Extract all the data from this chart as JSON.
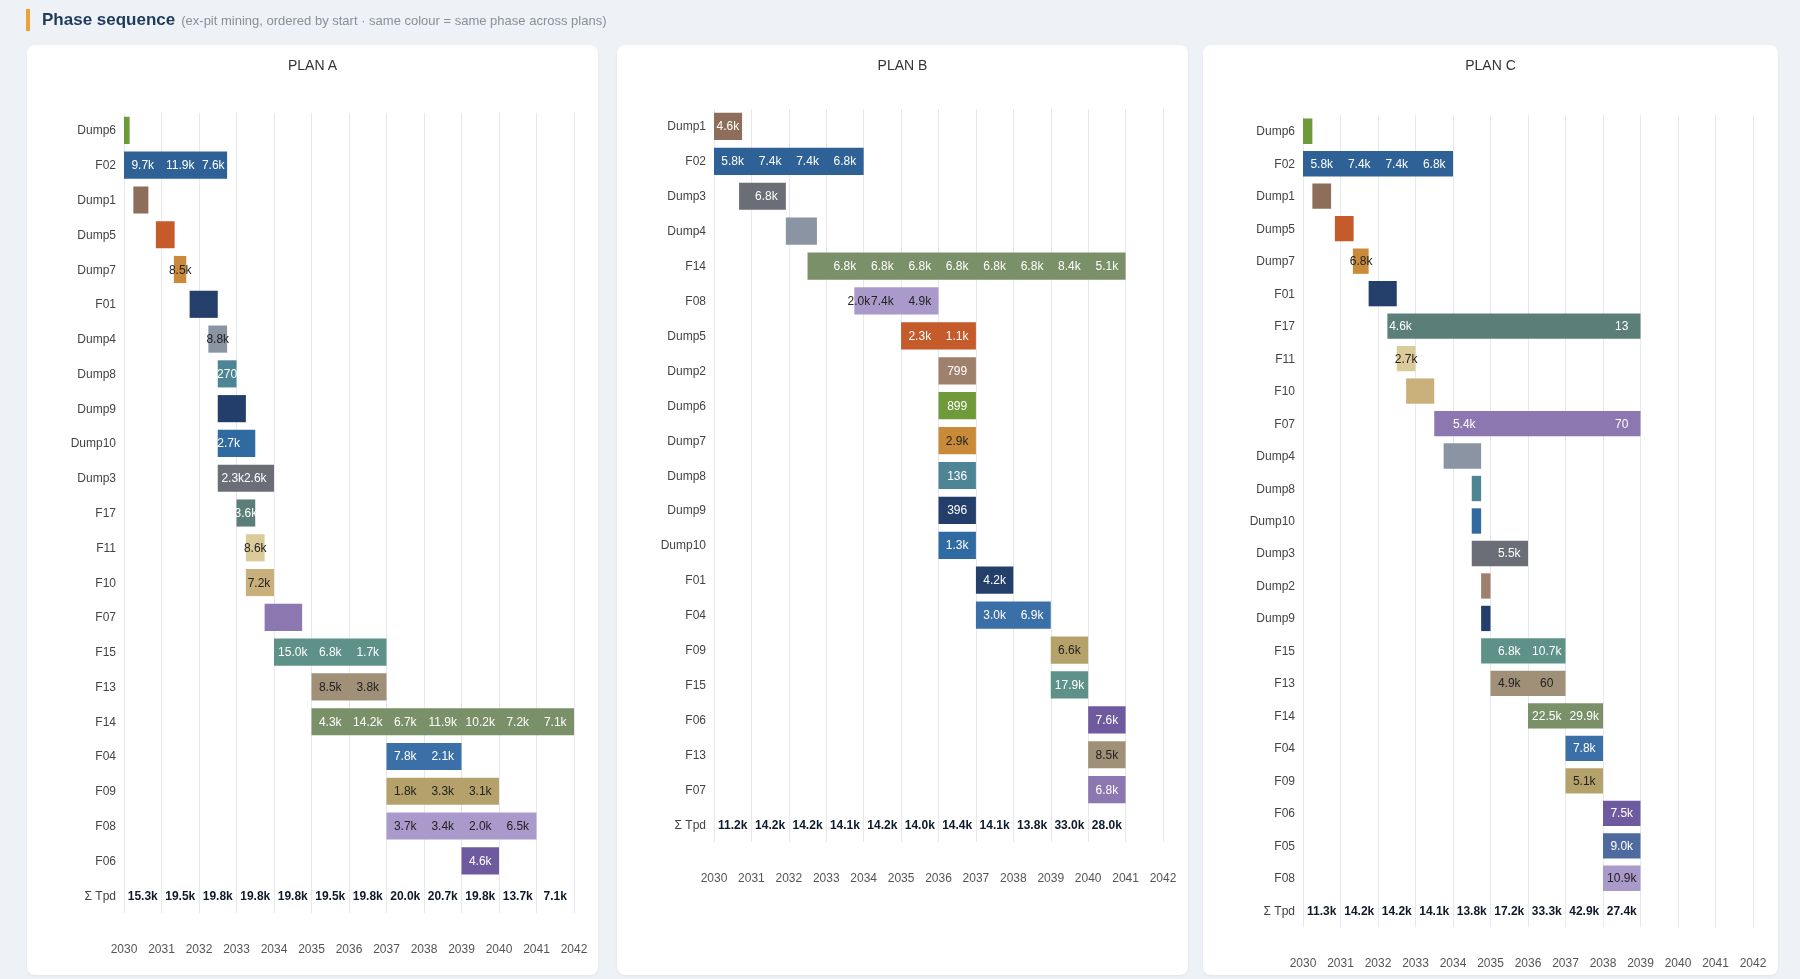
{
  "chart_data": [
    {
      "type": "bar",
      "orientation": "horizontal",
      "title": "PLAN A",
      "grid": "x",
      "xlim": [
        2030,
        2042
      ],
      "xticks": [
        2030,
        2031,
        2032,
        2033,
        2034,
        2035,
        2036,
        2037,
        2038,
        2039,
        2040,
        2041,
        2042
      ],
      "categories": [
        "Dump6",
        "F02",
        "Dump1",
        "Dump5",
        "Dump7",
        "F01",
        "Dump4",
        "Dump8",
        "Dump9",
        "Dump10",
        "Dump3",
        "F17",
        "F11",
        "F10",
        "F07",
        "F15",
        "F13",
        "F14",
        "F04",
        "F09",
        "F08",
        "F06",
        "Σ Tpd"
      ],
      "base": [
        2030,
        2030,
        2030.25,
        2030.85,
        2031.33,
        2031.75,
        2032.25,
        2032.5,
        2032.5,
        2032.5,
        2032.5,
        2033,
        2033.25,
        2033.25,
        2033.75,
        2034,
        2035,
        2035,
        2037,
        2037,
        2037,
        2039,
        null
      ],
      "values": [
        0.15,
        2.75,
        0.4,
        0.5,
        0.33,
        0.75,
        0.5,
        0.5,
        0.75,
        1,
        1.5,
        0.5,
        0.5,
        0.75,
        1,
        3,
        2,
        7,
        2,
        3,
        4,
        1,
        null
      ],
      "colors": [
        "#6f9a3a",
        "#2e6195",
        "#8c6e5a",
        "#c55a2a",
        "#c98a3a",
        "#253f6b",
        "#8a94a3",
        "#4d8595",
        "#233e6b",
        "#2f6aa0",
        "#6b6e76",
        "#5b7f78",
        "#dccb9a",
        "#c9b07a",
        "#8c77b0",
        "#5e9188",
        "#a09078",
        "#7a9068",
        "#3a6fa8",
        "#b5a26a",
        "#a99acb",
        "#6e5a9e",
        null
      ],
      "annotations": [
        "Phase sequence",
        "(ex-pit mining, ordered by start · same colour = same phase across plans)",
        {
          "text": "9.7k",
          "x": 2030.5,
          "y": "F02"
        },
        {
          "text": "11.9k",
          "x": 2031.5,
          "y": "F02"
        },
        {
          "text": "7.6k",
          "x": 2032.38,
          "y": "F02"
        },
        {
          "text": "8.5k",
          "x": 2031.5,
          "y": "Dump7"
        },
        {
          "text": "8.8k",
          "x": 2032.5,
          "y": "Dump4"
        },
        {
          "text": "270",
          "x": 2032.75,
          "y": "Dump8"
        },
        {
          "text": "2.7k",
          "x": 2032.79,
          "y": "Dump10"
        },
        {
          "text": "2.3k",
          "x": 2032.9,
          "y": "Dump3"
        },
        {
          "text": "2.6k",
          "x": 2033.5,
          "y": "Dump3"
        },
        {
          "text": "3.6k",
          "x": 2033.25,
          "y": "F17"
        },
        {
          "text": "8.6k",
          "x": 2033.5,
          "y": "F11"
        },
        {
          "text": "7.2k",
          "x": 2033.6,
          "y": "F10"
        },
        {
          "text": "15.0k",
          "x": 2034.5,
          "y": "F15"
        },
        {
          "text": "6.8k",
          "x": 2035.5,
          "y": "F15"
        },
        {
          "text": "1.7k",
          "x": 2036.5,
          "y": "F15"
        },
        {
          "text": "8.5k",
          "x": 2035.5,
          "y": "F13"
        },
        {
          "text": "3.8k",
          "x": 2036.5,
          "y": "F13"
        },
        {
          "text": "4.3k",
          "x": 2035.5,
          "y": "F14"
        },
        {
          "text": "14.2k",
          "x": 2036.5,
          "y": "F14"
        },
        {
          "text": "6.7k",
          "x": 2037.5,
          "y": "F14"
        },
        {
          "text": "11.9k",
          "x": 2038.5,
          "y": "F14"
        },
        {
          "text": "10.2k",
          "x": 2039.5,
          "y": "F14"
        },
        {
          "text": "7.2k",
          "x": 2040.5,
          "y": "F14"
        },
        {
          "text": "7.1k",
          "x": 2041.5,
          "y": "F14"
        },
        {
          "text": "7.8k",
          "x": 2037.5,
          "y": "F04"
        },
        {
          "text": "2.1k",
          "x": 2038.5,
          "y": "F04"
        },
        {
          "text": "1.8k",
          "x": 2037.5,
          "y": "F09"
        },
        {
          "text": "3.3k",
          "x": 2038.5,
          "y": "F09"
        },
        {
          "text": "3.1k",
          "x": 2039.5,
          "y": "F09"
        },
        {
          "text": "3.7k",
          "x": 2037.5,
          "y": "F08"
        },
        {
          "text": "3.4k",
          "x": 2038.5,
          "y": "F08"
        },
        {
          "text": "2.0k",
          "x": 2039.5,
          "y": "F08"
        },
        {
          "text": "6.5k",
          "x": 2040.5,
          "y": "F08"
        },
        {
          "text": "4.6k",
          "x": 2039.5,
          "y": "F06"
        },
        "15.3k",
        "19.5k",
        "19.8k",
        "19.8k",
        "19.8k",
        "19.5k",
        "19.8k",
        "20.0k",
        "20.7k",
        "19.8k",
        "13.7k",
        "7.1k"
      ]
    },
    {
      "type": "bar",
      "orientation": "horizontal",
      "title": "PLAN B",
      "grid": "x",
      "xlim": [
        2030,
        2042
      ],
      "xticks": [
        2030,
        2031,
        2032,
        2033,
        2034,
        2035,
        2036,
        2037,
        2038,
        2039,
        2040,
        2041,
        2042
      ],
      "categories": [
        "Dump1",
        "F02",
        "Dump3",
        "Dump4",
        "F14",
        "F08",
        "Dump5",
        "Dump2",
        "Dump6",
        "Dump7",
        "Dump8",
        "Dump9",
        "Dump10",
        "F01",
        "F04",
        "F09",
        "F15",
        "F06",
        "F13",
        "F07",
        "Σ Tpd"
      ],
      "base": [
        2030,
        2030,
        2030.67,
        2031.92,
        2032.5,
        2033.75,
        2035,
        2036,
        2036,
        2036,
        2036,
        2036,
        2036,
        2037,
        2037,
        2039,
        2039,
        2040,
        2040,
        2040,
        null
      ],
      "values": [
        0.75,
        4,
        1.25,
        0.83,
        8.5,
        2.25,
        2,
        1,
        1,
        1,
        1,
        1,
        1,
        1,
        2,
        1,
        1,
        1,
        1,
        1,
        null
      ],
      "colors": [
        "#8c6e5a",
        "#2e6195",
        "#6b6e76",
        "#8a94a3",
        "#7a9068",
        "#a99acb",
        "#c55a2a",
        "#9e806c",
        "#6f9a3a",
        "#c98a3a",
        "#4d8595",
        "#233e6b",
        "#2f6aa0",
        "#253f6b",
        "#3a6fa8",
        "#b5a26a",
        "#5e9188",
        "#6e5a9e",
        "#a09078",
        "#8c77b0",
        null
      ],
      "annotations": [
        {
          "text": "4.6k",
          "x": 2030.37,
          "y": "Dump1"
        },
        {
          "text": "5.8k",
          "x": 2030.5,
          "y": "F02"
        },
        {
          "text": "7.4k",
          "x": 2031.5,
          "y": "F02"
        },
        {
          "text": "7.4k",
          "x": 2032.5,
          "y": "F02"
        },
        {
          "text": "6.8k",
          "x": 2033.5,
          "y": "F02"
        },
        {
          "text": "6.8k",
          "x": 2031.4,
          "y": "Dump3"
        },
        {
          "text": "6.8k",
          "x": 2033.5,
          "y": "F14"
        },
        {
          "text": "6.8k",
          "x": 2034.5,
          "y": "F14"
        },
        {
          "text": "6.8k",
          "x": 2035.5,
          "y": "F14"
        },
        {
          "text": "6.8k",
          "x": 2036.5,
          "y": "F14"
        },
        {
          "text": "6.8k",
          "x": 2037.5,
          "y": "F14"
        },
        {
          "text": "6.8k",
          "x": 2038.5,
          "y": "F14"
        },
        {
          "text": "8.4k",
          "x": 2039.5,
          "y": "F14"
        },
        {
          "text": "5.1k",
          "x": 2040.5,
          "y": "F14"
        },
        {
          "text": "2.0k",
          "x": 2033.87,
          "y": "F08"
        },
        {
          "text": "7.4k",
          "x": 2034.5,
          "y": "F08"
        },
        {
          "text": "4.9k",
          "x": 2035.5,
          "y": "F08"
        },
        {
          "text": "2.3k",
          "x": 2035.5,
          "y": "Dump5"
        },
        {
          "text": "1.1k",
          "x": 2036.5,
          "y": "Dump5"
        },
        {
          "text": "799",
          "x": 2036.5,
          "y": "Dump2"
        },
        {
          "text": "899",
          "x": 2036.5,
          "y": "Dump6"
        },
        {
          "text": "2.9k",
          "x": 2036.5,
          "y": "Dump7"
        },
        {
          "text": "136",
          "x": 2036.5,
          "y": "Dump8"
        },
        {
          "text": "396",
          "x": 2036.5,
          "y": "Dump9"
        },
        {
          "text": "1.3k",
          "x": 2036.5,
          "y": "Dump10"
        },
        {
          "text": "4.2k",
          "x": 2037.5,
          "y": "F01"
        },
        {
          "text": "3.0k",
          "x": 2037.5,
          "y": "F04"
        },
        {
          "text": "6.9k",
          "x": 2038.5,
          "y": "F04"
        },
        {
          "text": "6.6k",
          "x": 2039.5,
          "y": "F09"
        },
        {
          "text": "17.9k",
          "x": 2039.5,
          "y": "F15"
        },
        {
          "text": "7.6k",
          "x": 2040.5,
          "y": "F06"
        },
        {
          "text": "8.5k",
          "x": 2040.5,
          "y": "F13"
        },
        {
          "text": "6.8k",
          "x": 2040.5,
          "y": "F07"
        },
        "11.2k",
        "14.2k",
        "14.2k",
        "14.1k",
        "14.2k",
        "14.0k",
        "14.4k",
        "14.1k",
        "13.8k",
        "33.0k",
        "28.0k"
      ]
    },
    {
      "type": "bar",
      "orientation": "horizontal",
      "title": "PLAN C",
      "grid": "x",
      "xlim": [
        2030,
        2042
      ],
      "xticks": [
        2030,
        2031,
        2032,
        2033,
        2034,
        2035,
        2036,
        2037,
        2038,
        2039,
        2040,
        2041,
        2042
      ],
      "categories": [
        "Dump6",
        "F02",
        "Dump1",
        "Dump5",
        "Dump7",
        "F01",
        "F17",
        "F11",
        "F10",
        "F07",
        "Dump4",
        "Dump8",
        "Dump10",
        "Dump3",
        "Dump2",
        "Dump9",
        "F15",
        "F13",
        "F14",
        "F04",
        "F09",
        "F06",
        "F05",
        "F08",
        "Σ Tpd"
      ],
      "base": [
        2030,
        2030,
        2030.25,
        2030.85,
        2031.33,
        2031.75,
        2032.25,
        2032.5,
        2032.75,
        2033.5,
        2033.75,
        2034.5,
        2034.5,
        2034.5,
        2034.75,
        2034.75,
        2034.75,
        2035,
        2036,
        2037,
        2037,
        2038,
        2038,
        2038,
        null
      ],
      "values": [
        0.25,
        4,
        0.5,
        0.5,
        0.42,
        0.75,
        6.75,
        0.5,
        0.75,
        5.5,
        1,
        0.25,
        0.25,
        1.5,
        0.25,
        0.25,
        2.25,
        2,
        2,
        1,
        1,
        1,
        1,
        1,
        null
      ],
      "colors": [
        "#6f9a3a",
        "#2e6195",
        "#8c6e5a",
        "#c55a2a",
        "#c98a3a",
        "#253f6b",
        "#5b7f78",
        "#dccb9a",
        "#c9b07a",
        "#8c77b0",
        "#8a94a3",
        "#4d8595",
        "#2f6aa0",
        "#6b6e76",
        "#9e806c",
        "#233e6b",
        "#5e9188",
        "#a09078",
        "#7a9068",
        "#3a6fa8",
        "#b5a26a",
        "#6e5a9e",
        "#4f6a9e",
        "#a99acb",
        null
      ],
      "annotations": [
        {
          "text": "5.8k",
          "x": 2030.5,
          "y": "F02"
        },
        {
          "text": "7.4k",
          "x": 2031.5,
          "y": "F02"
        },
        {
          "text": "7.4k",
          "x": 2032.5,
          "y": "F02"
        },
        {
          "text": "6.8k",
          "x": 2033.5,
          "y": "F02"
        },
        {
          "text": "6.8k",
          "x": 2031.55,
          "y": "Dump7"
        },
        {
          "text": "4.6k",
          "x": 2032.6,
          "y": "F17"
        },
        {
          "text": "13",
          "x": 2038.5,
          "y": "F17"
        },
        {
          "text": "2.7k",
          "x": 2032.75,
          "y": "F11"
        },
        {
          "text": "5.4k",
          "x": 2034.3,
          "y": "F07"
        },
        {
          "text": "70",
          "x": 2038.5,
          "y": "F07"
        },
        {
          "text": "5.5k",
          "x": 2035.5,
          "y": "Dump3"
        },
        {
          "text": "6.8k",
          "x": 2035.5,
          "y": "F15"
        },
        {
          "text": "10.7k",
          "x": 2036.5,
          "y": "F15"
        },
        {
          "text": "4.9k",
          "x": 2035.5,
          "y": "F13"
        },
        {
          "text": "60",
          "x": 2036.5,
          "y": "F13"
        },
        {
          "text": "22.5k",
          "x": 2036.5,
          "y": "F14"
        },
        {
          "text": "29.9k",
          "x": 2037.5,
          "y": "F14"
        },
        {
          "text": "7.8k",
          "x": 2037.5,
          "y": "F04"
        },
        {
          "text": "5.1k",
          "x": 2037.5,
          "y": "F09"
        },
        {
          "text": "7.5k",
          "x": 2038.5,
          "y": "F06"
        },
        {
          "text": "9.0k",
          "x": 2038.5,
          "y": "F05"
        },
        {
          "text": "10.9k",
          "x": 2038.5,
          "y": "F08"
        },
        "11.3k",
        "14.2k",
        "14.2k",
        "14.1k",
        "13.8k",
        "17.2k",
        "33.3k",
        "42.9k",
        "27.4k"
      ]
    }
  ]
}
